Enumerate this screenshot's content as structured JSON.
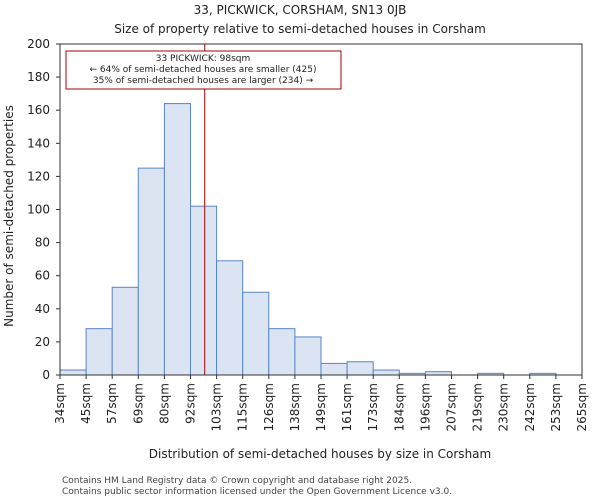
{
  "chart_data": {
    "type": "bar",
    "title": "33, PICKWICK, CORSHAM, SN13 0JB",
    "subtitle": "Size of property relative to semi-detached houses in Corsham",
    "xlabel": "Distribution of semi-detached houses by size in Corsham",
    "ylabel": "Number of semi-detached properties",
    "ylim": [
      0,
      200
    ],
    "yticks": [
      0,
      20,
      40,
      60,
      80,
      100,
      120,
      140,
      160,
      180,
      200
    ],
    "bin_edges": [
      34,
      45,
      57,
      69,
      80,
      92,
      103,
      115,
      126,
      138,
      149,
      161,
      173,
      184,
      196,
      207,
      219,
      230,
      242,
      253,
      265
    ],
    "xtick_labels": [
      "34sqm",
      "45sqm",
      "57sqm",
      "69sqm",
      "80sqm",
      "92sqm",
      "103sqm",
      "115sqm",
      "126sqm",
      "138sqm",
      "149sqm",
      "161sqm",
      "173sqm",
      "184sqm",
      "196sqm",
      "207sqm",
      "219sqm",
      "230sqm",
      "242sqm",
      "253sqm",
      "265sqm"
    ],
    "values": [
      3,
      28,
      53,
      125,
      164,
      102,
      69,
      50,
      28,
      23,
      7,
      8,
      3,
      1,
      2,
      0,
      1,
      0,
      1,
      0
    ],
    "bar_color": "#dae4f2",
    "bar_edge_color": "#5a86c6",
    "marker": {
      "value": 98,
      "color": "#aa0000",
      "annotation_lines": [
        "33 PICKWICK: 98sqm",
        "← 64% of semi-detached houses are smaller (425)",
        "35% of semi-detached houses are larger (234) →"
      ]
    },
    "grid": false
  },
  "footer": {
    "line1": "Contains HM Land Registry data © Crown copyright and database right 2025.",
    "line2": "Contains public sector information licensed under the Open Government Licence v3.0."
  }
}
